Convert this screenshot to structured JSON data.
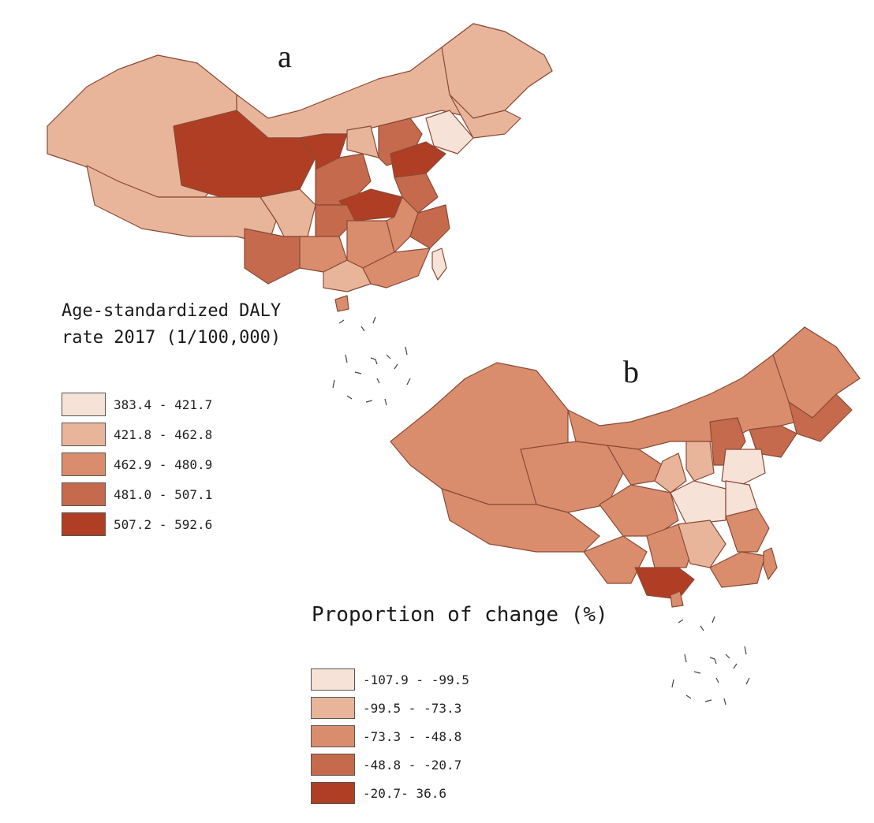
{
  "panels": {
    "a": {
      "label": "a",
      "legend_title": "Age-standardized DALY\nrate 2017 (1/100,000)",
      "classes": [
        {
          "range": "383.4 - 421.7",
          "color": "#f6e2d6"
        },
        {
          "range": "421.8 - 462.8",
          "color": "#e8b59a"
        },
        {
          "range": "462.9 - 480.9",
          "color": "#d98d6d"
        },
        {
          "range": "481.0 - 507.1",
          "color": "#c56a4c"
        },
        {
          "range": "507.2 - 592.6",
          "color": "#b03e24"
        }
      ]
    },
    "b": {
      "label": "b",
      "legend_title": "Proportion of change (%)",
      "classes": [
        {
          "range": "-107.9 - -99.5",
          "color": "#f6e2d6"
        },
        {
          "range": "-99.5 - -73.3",
          "color": "#e8b59a"
        },
        {
          "range": "-73.3 - -48.8",
          "color": "#d98d6d"
        },
        {
          "range": "-48.8 - -20.7",
          "color": "#c56a4c"
        },
        {
          "range": "-20.7- 36.6",
          "color": "#b03e24"
        }
      ]
    }
  },
  "colors": {
    "border": "#8a4a36",
    "background": "#ffffff"
  }
}
